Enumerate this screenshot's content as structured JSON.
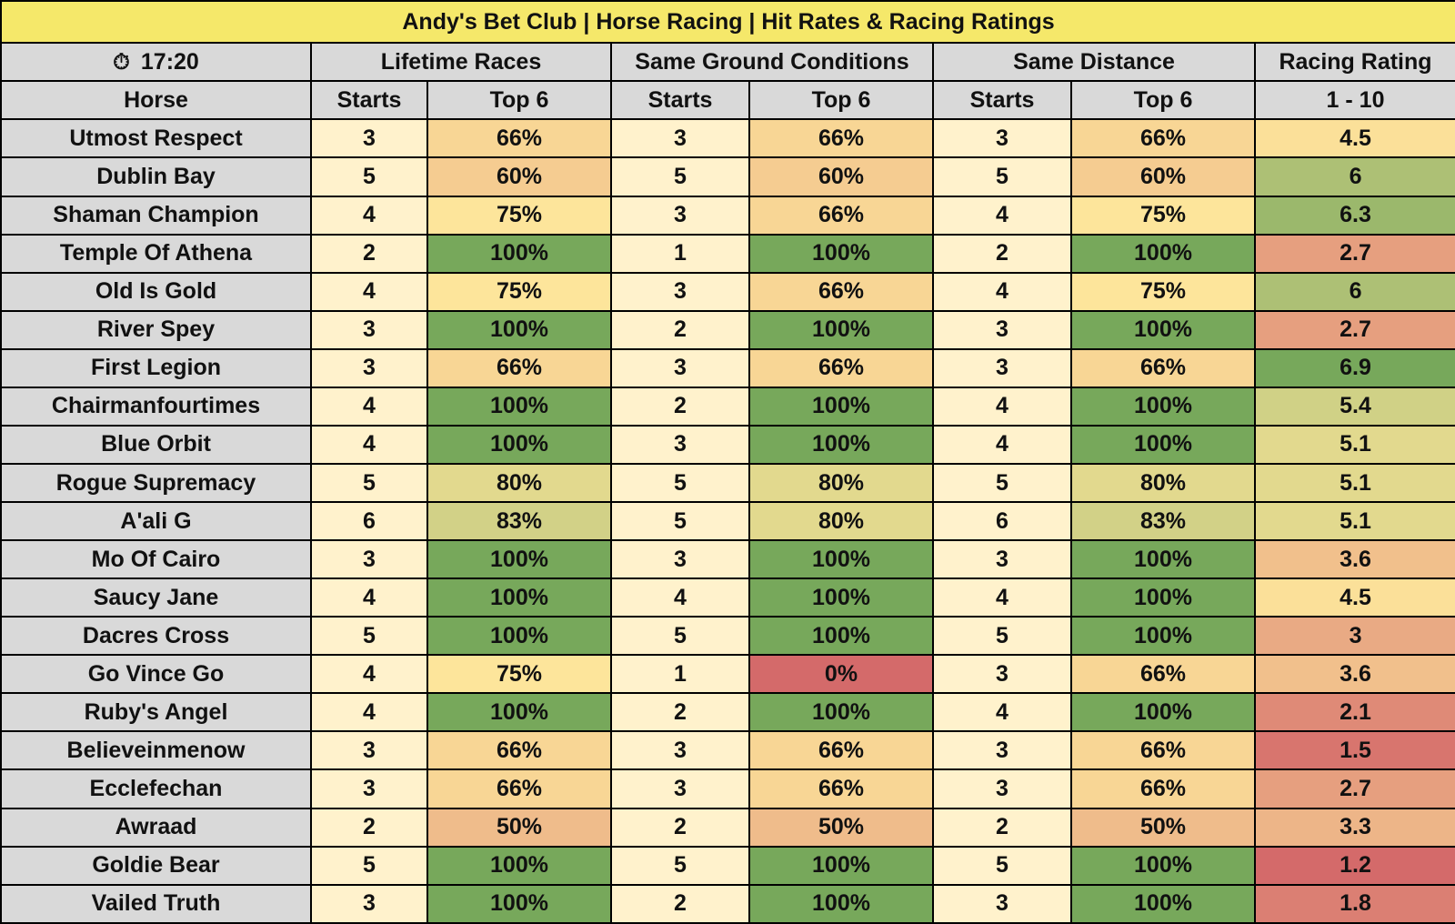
{
  "title": "Andy's Bet Club | Horse Racing | Hit Rates & Racing Ratings",
  "race_time": "17:20",
  "race_time_icon": "stopwatch-icon",
  "groups": [
    "Lifetime Races",
    "Same Ground Conditions",
    "Same Distance",
    "Racing Rating"
  ],
  "subheaders": {
    "horse": "Horse",
    "starts": "Starts",
    "top6": "Top 6",
    "rating_range": "1 - 10"
  },
  "colors": {
    "title_bg": "#f5e86a",
    "header_bg": "#d9d9d9",
    "starts_bg": "#fff2cc",
    "scale_red": "#d46a6a",
    "scale_yellow": "#fde59b",
    "scale_green": "#77a85b"
  },
  "rows": [
    {
      "horse": "Utmost Respect",
      "lifetime_starts": "3",
      "lifetime_top6": "66%",
      "ground_starts": "3",
      "ground_top6": "66%",
      "distance_starts": "3",
      "distance_top6": "66%",
      "rating": "4.5"
    },
    {
      "horse": "Dublin Bay",
      "lifetime_starts": "5",
      "lifetime_top6": "60%",
      "ground_starts": "5",
      "ground_top6": "60%",
      "distance_starts": "5",
      "distance_top6": "60%",
      "rating": "6"
    },
    {
      "horse": "Shaman Champion",
      "lifetime_starts": "4",
      "lifetime_top6": "75%",
      "ground_starts": "3",
      "ground_top6": "66%",
      "distance_starts": "4",
      "distance_top6": "75%",
      "rating": "6.3"
    },
    {
      "horse": "Temple Of Athena",
      "lifetime_starts": "2",
      "lifetime_top6": "100%",
      "ground_starts": "1",
      "ground_top6": "100%",
      "distance_starts": "2",
      "distance_top6": "100%",
      "rating": "2.7"
    },
    {
      "horse": "Old Is Gold",
      "lifetime_starts": "4",
      "lifetime_top6": "75%",
      "ground_starts": "3",
      "ground_top6": "66%",
      "distance_starts": "4",
      "distance_top6": "75%",
      "rating": "6"
    },
    {
      "horse": "River Spey",
      "lifetime_starts": "3",
      "lifetime_top6": "100%",
      "ground_starts": "2",
      "ground_top6": "100%",
      "distance_starts": "3",
      "distance_top6": "100%",
      "rating": "2.7"
    },
    {
      "horse": "First Legion",
      "lifetime_starts": "3",
      "lifetime_top6": "66%",
      "ground_starts": "3",
      "ground_top6": "66%",
      "distance_starts": "3",
      "distance_top6": "66%",
      "rating": "6.9"
    },
    {
      "horse": "Chairmanfourtimes",
      "lifetime_starts": "4",
      "lifetime_top6": "100%",
      "ground_starts": "2",
      "ground_top6": "100%",
      "distance_starts": "4",
      "distance_top6": "100%",
      "rating": "5.4"
    },
    {
      "horse": "Blue Orbit",
      "lifetime_starts": "4",
      "lifetime_top6": "100%",
      "ground_starts": "3",
      "ground_top6": "100%",
      "distance_starts": "4",
      "distance_top6": "100%",
      "rating": "5.1"
    },
    {
      "horse": "Rogue Supremacy",
      "lifetime_starts": "5",
      "lifetime_top6": "80%",
      "ground_starts": "5",
      "ground_top6": "80%",
      "distance_starts": "5",
      "distance_top6": "80%",
      "rating": "5.1"
    },
    {
      "horse": "A'ali G",
      "lifetime_starts": "6",
      "lifetime_top6": "83%",
      "ground_starts": "5",
      "ground_top6": "80%",
      "distance_starts": "6",
      "distance_top6": "83%",
      "rating": "5.1"
    },
    {
      "horse": "Mo Of Cairo",
      "lifetime_starts": "3",
      "lifetime_top6": "100%",
      "ground_starts": "3",
      "ground_top6": "100%",
      "distance_starts": "3",
      "distance_top6": "100%",
      "rating": "3.6"
    },
    {
      "horse": "Saucy Jane",
      "lifetime_starts": "4",
      "lifetime_top6": "100%",
      "ground_starts": "4",
      "ground_top6": "100%",
      "distance_starts": "4",
      "distance_top6": "100%",
      "rating": "4.5"
    },
    {
      "horse": "Dacres Cross",
      "lifetime_starts": "5",
      "lifetime_top6": "100%",
      "ground_starts": "5",
      "ground_top6": "100%",
      "distance_starts": "5",
      "distance_top6": "100%",
      "rating": "3"
    },
    {
      "horse": "Go Vince Go",
      "lifetime_starts": "4",
      "lifetime_top6": "75%",
      "ground_starts": "1",
      "ground_top6": "0%",
      "distance_starts": "3",
      "distance_top6": "66%",
      "rating": "3.6"
    },
    {
      "horse": "Ruby's Angel",
      "lifetime_starts": "4",
      "lifetime_top6": "100%",
      "ground_starts": "2",
      "ground_top6": "100%",
      "distance_starts": "4",
      "distance_top6": "100%",
      "rating": "2.1"
    },
    {
      "horse": "Believeinmenow",
      "lifetime_starts": "3",
      "lifetime_top6": "66%",
      "ground_starts": "3",
      "ground_top6": "66%",
      "distance_starts": "3",
      "distance_top6": "66%",
      "rating": "1.5"
    },
    {
      "horse": "Ecclefechan",
      "lifetime_starts": "3",
      "lifetime_top6": "66%",
      "ground_starts": "3",
      "ground_top6": "66%",
      "distance_starts": "3",
      "distance_top6": "66%",
      "rating": "2.7"
    },
    {
      "horse": "Awraad",
      "lifetime_starts": "2",
      "lifetime_top6": "50%",
      "ground_starts": "2",
      "ground_top6": "50%",
      "distance_starts": "2",
      "distance_top6": "50%",
      "rating": "3.3"
    },
    {
      "horse": "Goldie Bear",
      "lifetime_starts": "5",
      "lifetime_top6": "100%",
      "ground_starts": "5",
      "ground_top6": "100%",
      "distance_starts": "5",
      "distance_top6": "100%",
      "rating": "1.2"
    },
    {
      "horse": "Vailed Truth",
      "lifetime_starts": "3",
      "lifetime_top6": "100%",
      "ground_starts": "2",
      "ground_top6": "100%",
      "distance_starts": "3",
      "distance_top6": "100%",
      "rating": "1.8"
    }
  ]
}
